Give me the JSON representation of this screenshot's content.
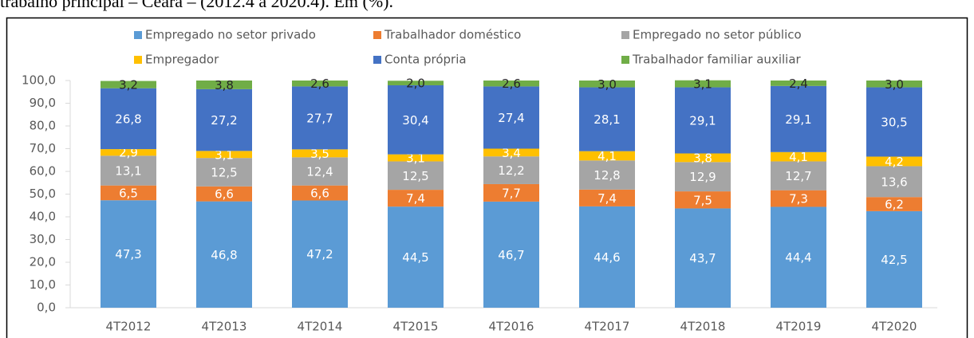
{
  "chart_data": {
    "type": "stacked_bar",
    "title": "trabalho principal – Ceará – (2012.4 a 2020.4). Em (%).",
    "categories": [
      "4T2012",
      "4T2013",
      "4T2014",
      "4T2015",
      "4T2016",
      "4T2017",
      "4T2018",
      "4T2019",
      "4T2020"
    ],
    "series": [
      {
        "name": "Empregado no setor privado",
        "color": "#5b9bd5",
        "values": [
          47.3,
          46.8,
          47.2,
          44.5,
          46.7,
          44.6,
          43.7,
          44.4,
          42.5
        ],
        "value_labels": [
          "47,3",
          "46,8",
          "47,2",
          "44,5",
          "46,7",
          "44,6",
          "43,7",
          "44,4",
          "42,5"
        ]
      },
      {
        "name": "Trabalhador doméstico",
        "color": "#ed7d31",
        "values": [
          6.5,
          6.6,
          6.6,
          7.4,
          7.7,
          7.4,
          7.5,
          7.3,
          6.2
        ],
        "value_labels": [
          "6,5",
          "6,6",
          "6,6",
          "7,4",
          "7,7",
          "7,4",
          "7,5",
          "7,3",
          "6,2"
        ]
      },
      {
        "name": "Empregado no setor público",
        "color": "#a5a5a5",
        "values": [
          13.1,
          12.5,
          12.4,
          12.5,
          12.2,
          12.8,
          12.9,
          12.7,
          13.6
        ],
        "value_labels": [
          "13,1",
          "12,5",
          "12,4",
          "12,5",
          "12,2",
          "12,8",
          "12,9",
          "12,7",
          "13,6"
        ]
      },
      {
        "name": "Empregador",
        "color": "#ffc000",
        "values": [
          2.9,
          3.1,
          3.5,
          3.1,
          3.4,
          4.1,
          3.8,
          4.1,
          4.2
        ],
        "value_labels": [
          "2,9",
          "3,1",
          "3,5",
          "3,1",
          "3,4",
          "4,1",
          "3,8",
          "4,1",
          "4,2"
        ]
      },
      {
        "name": "Conta própria",
        "color": "#4472c4",
        "values": [
          26.8,
          27.2,
          27.7,
          30.4,
          27.4,
          28.1,
          29.1,
          29.1,
          30.5
        ],
        "value_labels": [
          "26,8",
          "27,2",
          "27,7",
          "30,4",
          "27,4",
          "28,1",
          "29,1",
          "29,1",
          "30,5"
        ]
      },
      {
        "name": "Trabalhador familiar auxiliar",
        "color": "#70ad47",
        "values": [
          3.2,
          3.8,
          2.6,
          2.0,
          2.6,
          3.0,
          3.1,
          2.4,
          3.0
        ],
        "value_labels": [
          "3,2",
          "3,8",
          "2,6",
          "2,0",
          "2,6",
          "3,0",
          "3,1",
          "2,4",
          "3,0"
        ]
      }
    ],
    "ylim": [
      0,
      100
    ],
    "yticks": [
      {
        "value": 0,
        "label": "0,0"
      },
      {
        "value": 10,
        "label": "10,0"
      },
      {
        "value": 20,
        "label": "20,0"
      },
      {
        "value": 30,
        "label": "30,0"
      },
      {
        "value": 40,
        "label": "40,0"
      },
      {
        "value": 50,
        "label": "50,0"
      },
      {
        "value": 60,
        "label": "60,0"
      },
      {
        "value": 70,
        "label": "70,0"
      },
      {
        "value": 80,
        "label": "80,0"
      },
      {
        "value": 90,
        "label": "90,0"
      },
      {
        "value": 100,
        "label": "100,0"
      }
    ],
    "legend": "top"
  }
}
